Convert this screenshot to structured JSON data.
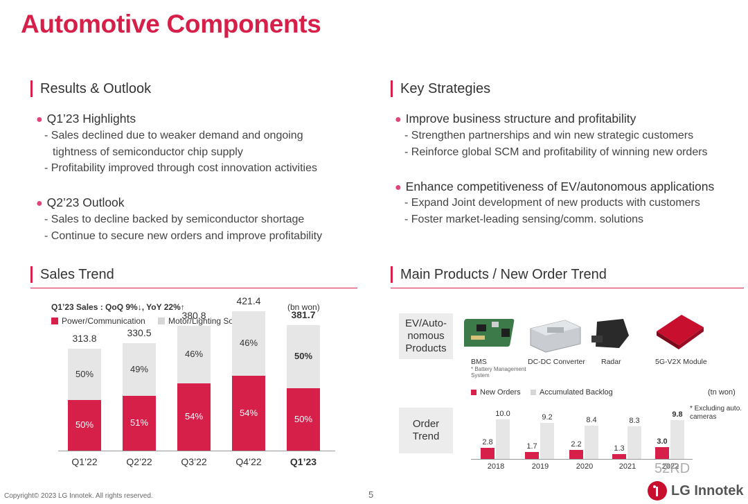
{
  "title": "Automotive Components",
  "results": {
    "heading": "Results & Outlook",
    "q1_title": "Q1’23 Highlights",
    "q1_items": [
      "- Sales declined due to weaker demand and ongoing",
      "tightness of semiconductor chip supply",
      "- Profitability improved through cost innovation activities"
    ],
    "q2_title": "Q2’23 Outlook",
    "q2_items": [
      "- Sales to decline backed by semiconductor shortage",
      "- Continue to secure new orders and improve profitability"
    ]
  },
  "strategies": {
    "heading": "Key Strategies",
    "s1_title": "Improve business structure and profitability",
    "s1_items": [
      "- Strengthen partnerships and win new strategic customers",
      "- Reinforce global SCM and profitability of winning new orders"
    ],
    "s2_title": "Enhance competitiveness of EV/autonomous applications",
    "s2_items": [
      "- Expand Joint development of new products with customers",
      "- Foster market-leading sensing/comm. solutions"
    ]
  },
  "sales": {
    "heading": "Sales Trend",
    "subtitle": "Q1’23 Sales : QoQ 9%↓, YoY 22%↑",
    "unit": "(bn won)",
    "legend": [
      "Power/Communication",
      "Motor/Lighting Solution"
    ]
  },
  "products": {
    "heading": "Main Products / New Order Trend",
    "ev_label": "EV/Auto-nomous Products",
    "items": [
      "BMS",
      "DC-DC Converter",
      "Radar",
      "5G-V2X Module"
    ],
    "bms_note": "* Battery Management System",
    "order_label": "Order Trend",
    "legend": [
      "New Orders",
      "Accumulated Backlog"
    ],
    "unit": "(tn won)",
    "note": "* Excluding auto. cameras"
  },
  "chart_data": [
    {
      "type": "bar",
      "categories": [
        "Q1’22",
        "Q2’22",
        "Q3’22",
        "Q4’22",
        "Q1’23"
      ],
      "totals": [
        "313.8",
        "330.5",
        "380.8",
        "421.4",
        "381.7"
      ],
      "series": [
        {
          "name": "Power/Communication",
          "values": [
            50,
            51,
            54,
            54,
            50
          ],
          "labels": [
            "50%",
            "51%",
            "54%",
            "54%",
            "50%"
          ]
        },
        {
          "name": "Motor/Lighting Solution",
          "values": [
            50,
            49,
            46,
            46,
            50
          ],
          "labels": [
            "50%",
            "49%",
            "46%",
            "46%",
            "50%"
          ]
        }
      ],
      "colors": [
        "#d6204a",
        "#e6e6e6"
      ]
    },
    {
      "type": "bar",
      "categories": [
        "2018",
        "2019",
        "2020",
        "2021",
        "2022"
      ],
      "series": [
        {
          "name": "New Orders",
          "values": [
            2.8,
            1.7,
            2.2,
            1.3,
            3.0
          ],
          "labels": [
            "2.8",
            "1.7",
            "2.2",
            "1.3",
            "3.0"
          ]
        },
        {
          "name": "Accumulated Backlog",
          "values": [
            10.0,
            9.2,
            8.4,
            8.3,
            9.8
          ],
          "labels": [
            "10.0",
            "9.2",
            "8.4",
            "8.3",
            "9.8"
          ]
        }
      ],
      "colors": [
        "#d6204a",
        "#e6e6e6"
      ]
    }
  ],
  "footer": {
    "copyright": "Copyright© 2023 LG Innotek. All rights reserved.",
    "page": "5",
    "logo": "LG Innotek",
    "watermark": "52RD"
  }
}
